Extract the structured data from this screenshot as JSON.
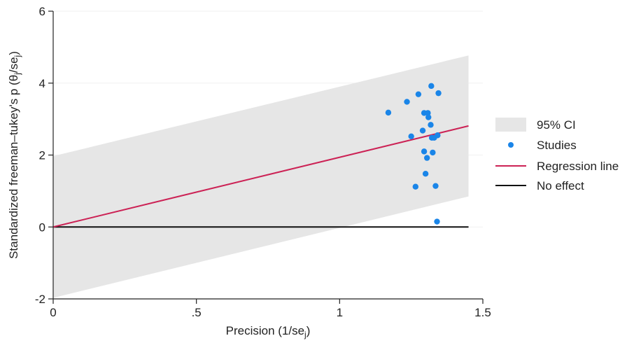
{
  "chart_data": {
    "type": "scatter",
    "title": "",
    "xlabel": {
      "prefix": "Precision (1/se",
      "sub": "j",
      "suffix": ")"
    },
    "ylabel": {
      "prefix": "Standardized freeman–tukey's p (θ",
      "sub1": "j",
      "mid": "/se",
      "sub2": "j",
      "suffix": ")"
    },
    "xlim": [
      0,
      1.5
    ],
    "ylim": [
      -2,
      6
    ],
    "x_ticks": [
      {
        "value": 0,
        "label": "0"
      },
      {
        "value": 0.5,
        "label": ".5"
      },
      {
        "value": 1,
        "label": "1"
      },
      {
        "value": 1.5,
        "label": "1.5"
      }
    ],
    "y_ticks": [
      {
        "value": -2,
        "label": "-2"
      },
      {
        "value": 0,
        "label": "0"
      },
      {
        "value": 2,
        "label": "2"
      },
      {
        "value": 4,
        "label": "4"
      },
      {
        "value": 6,
        "label": "6"
      }
    ],
    "grid": "horizontal",
    "legend_position": "right",
    "ci_band": {
      "name": "95% CI",
      "x": [
        0,
        1.45
      ],
      "upper": [
        1.97,
        4.77
      ],
      "lower": [
        -1.97,
        0.85
      ]
    },
    "regression_line": {
      "name": "Regression line",
      "x": [
        0,
        1.45
      ],
      "y": [
        0,
        2.81
      ]
    },
    "no_effect_line": {
      "name": "No effect",
      "y": 0,
      "x": [
        0,
        1.45
      ]
    },
    "studies": {
      "name": "Studies",
      "points": [
        {
          "x": 1.17,
          "y": 3.18
        },
        {
          "x": 1.235,
          "y": 3.48
        },
        {
          "x": 1.25,
          "y": 2.52
        },
        {
          "x": 1.265,
          "y": 1.12
        },
        {
          "x": 1.275,
          "y": 3.69
        },
        {
          "x": 1.29,
          "y": 2.68
        },
        {
          "x": 1.295,
          "y": 3.17
        },
        {
          "x": 1.295,
          "y": 2.1
        },
        {
          "x": 1.3,
          "y": 1.48
        },
        {
          "x": 1.305,
          "y": 1.92
        },
        {
          "x": 1.308,
          "y": 3.17
        },
        {
          "x": 1.31,
          "y": 3.05
        },
        {
          "x": 1.318,
          "y": 2.84
        },
        {
          "x": 1.32,
          "y": 3.92
        },
        {
          "x": 1.322,
          "y": 2.48
        },
        {
          "x": 1.325,
          "y": 2.07
        },
        {
          "x": 1.33,
          "y": 2.48
        },
        {
          "x": 1.335,
          "y": 1.14
        },
        {
          "x": 1.34,
          "y": 0.15
        },
        {
          "x": 1.342,
          "y": 2.55
        },
        {
          "x": 1.345,
          "y": 3.72
        }
      ]
    },
    "colors": {
      "ci": "#e6e6e6",
      "points": "#1a85e8",
      "regression": "#cc2255",
      "no_effect": "#111111",
      "grid": "#f1f1f1",
      "axis": "#222222"
    }
  }
}
